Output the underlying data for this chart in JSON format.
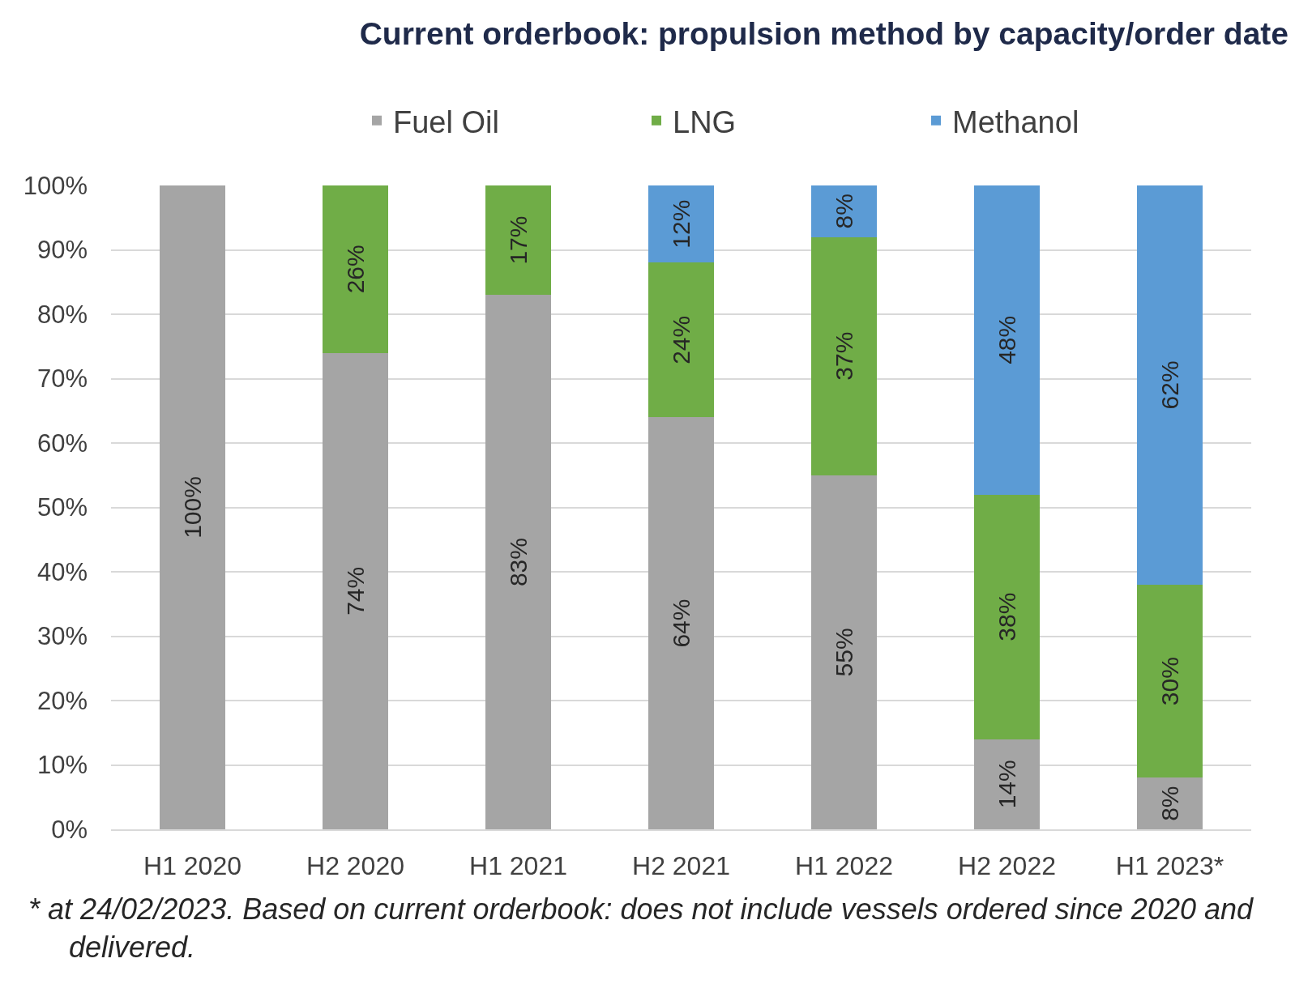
{
  "chart_data": {
    "type": "bar",
    "stacked": true,
    "title": "Current orderbook: propulsion method by capacity/order date",
    "categories": [
      "H1 2020",
      "H2 2020",
      "H1 2021",
      "H2 2021",
      "H1 2022",
      "H2 2022",
      "H1 2023*"
    ],
    "series": [
      {
        "name": "Fuel Oil",
        "color": "#a5a5a5",
        "values": [
          100,
          74,
          83,
          64,
          55,
          14,
          8
        ],
        "value_labels": [
          "100%",
          "74%",
          "83%",
          "64%",
          "55%",
          "14%",
          "8%"
        ]
      },
      {
        "name": "LNG",
        "color": "#70ad47",
        "values": [
          null,
          26,
          17,
          24,
          37,
          38,
          30
        ],
        "value_labels": [
          null,
          "26%",
          "17%",
          "24%",
          "37%",
          "38%",
          "30%"
        ]
      },
      {
        "name": "Methanol",
        "color": "#5b9bd5",
        "values": [
          null,
          null,
          null,
          12,
          8,
          48,
          62
        ],
        "value_labels": [
          null,
          null,
          null,
          "12%",
          "8%",
          "48%",
          "62%"
        ]
      }
    ],
    "ylim": [
      0,
      100
    ],
    "yticks": [
      {
        "value": 0,
        "label": "0%"
      },
      {
        "value": 10,
        "label": "10%"
      },
      {
        "value": 20,
        "label": "20%"
      },
      {
        "value": 30,
        "label": "30%"
      },
      {
        "value": 40,
        "label": "40%"
      },
      {
        "value": 50,
        "label": "50%"
      },
      {
        "value": 60,
        "label": "60%"
      },
      {
        "value": 70,
        "label": "70%"
      },
      {
        "value": 80,
        "label": "80%"
      },
      {
        "value": 90,
        "label": "90%"
      },
      {
        "value": 100,
        "label": "100%"
      }
    ],
    "grid": "y",
    "legend": "top",
    "annotations": [
      "* at 24/02/2023. Based on current orderbook: does not include vessels ordered since 2020 and delivered."
    ]
  }
}
